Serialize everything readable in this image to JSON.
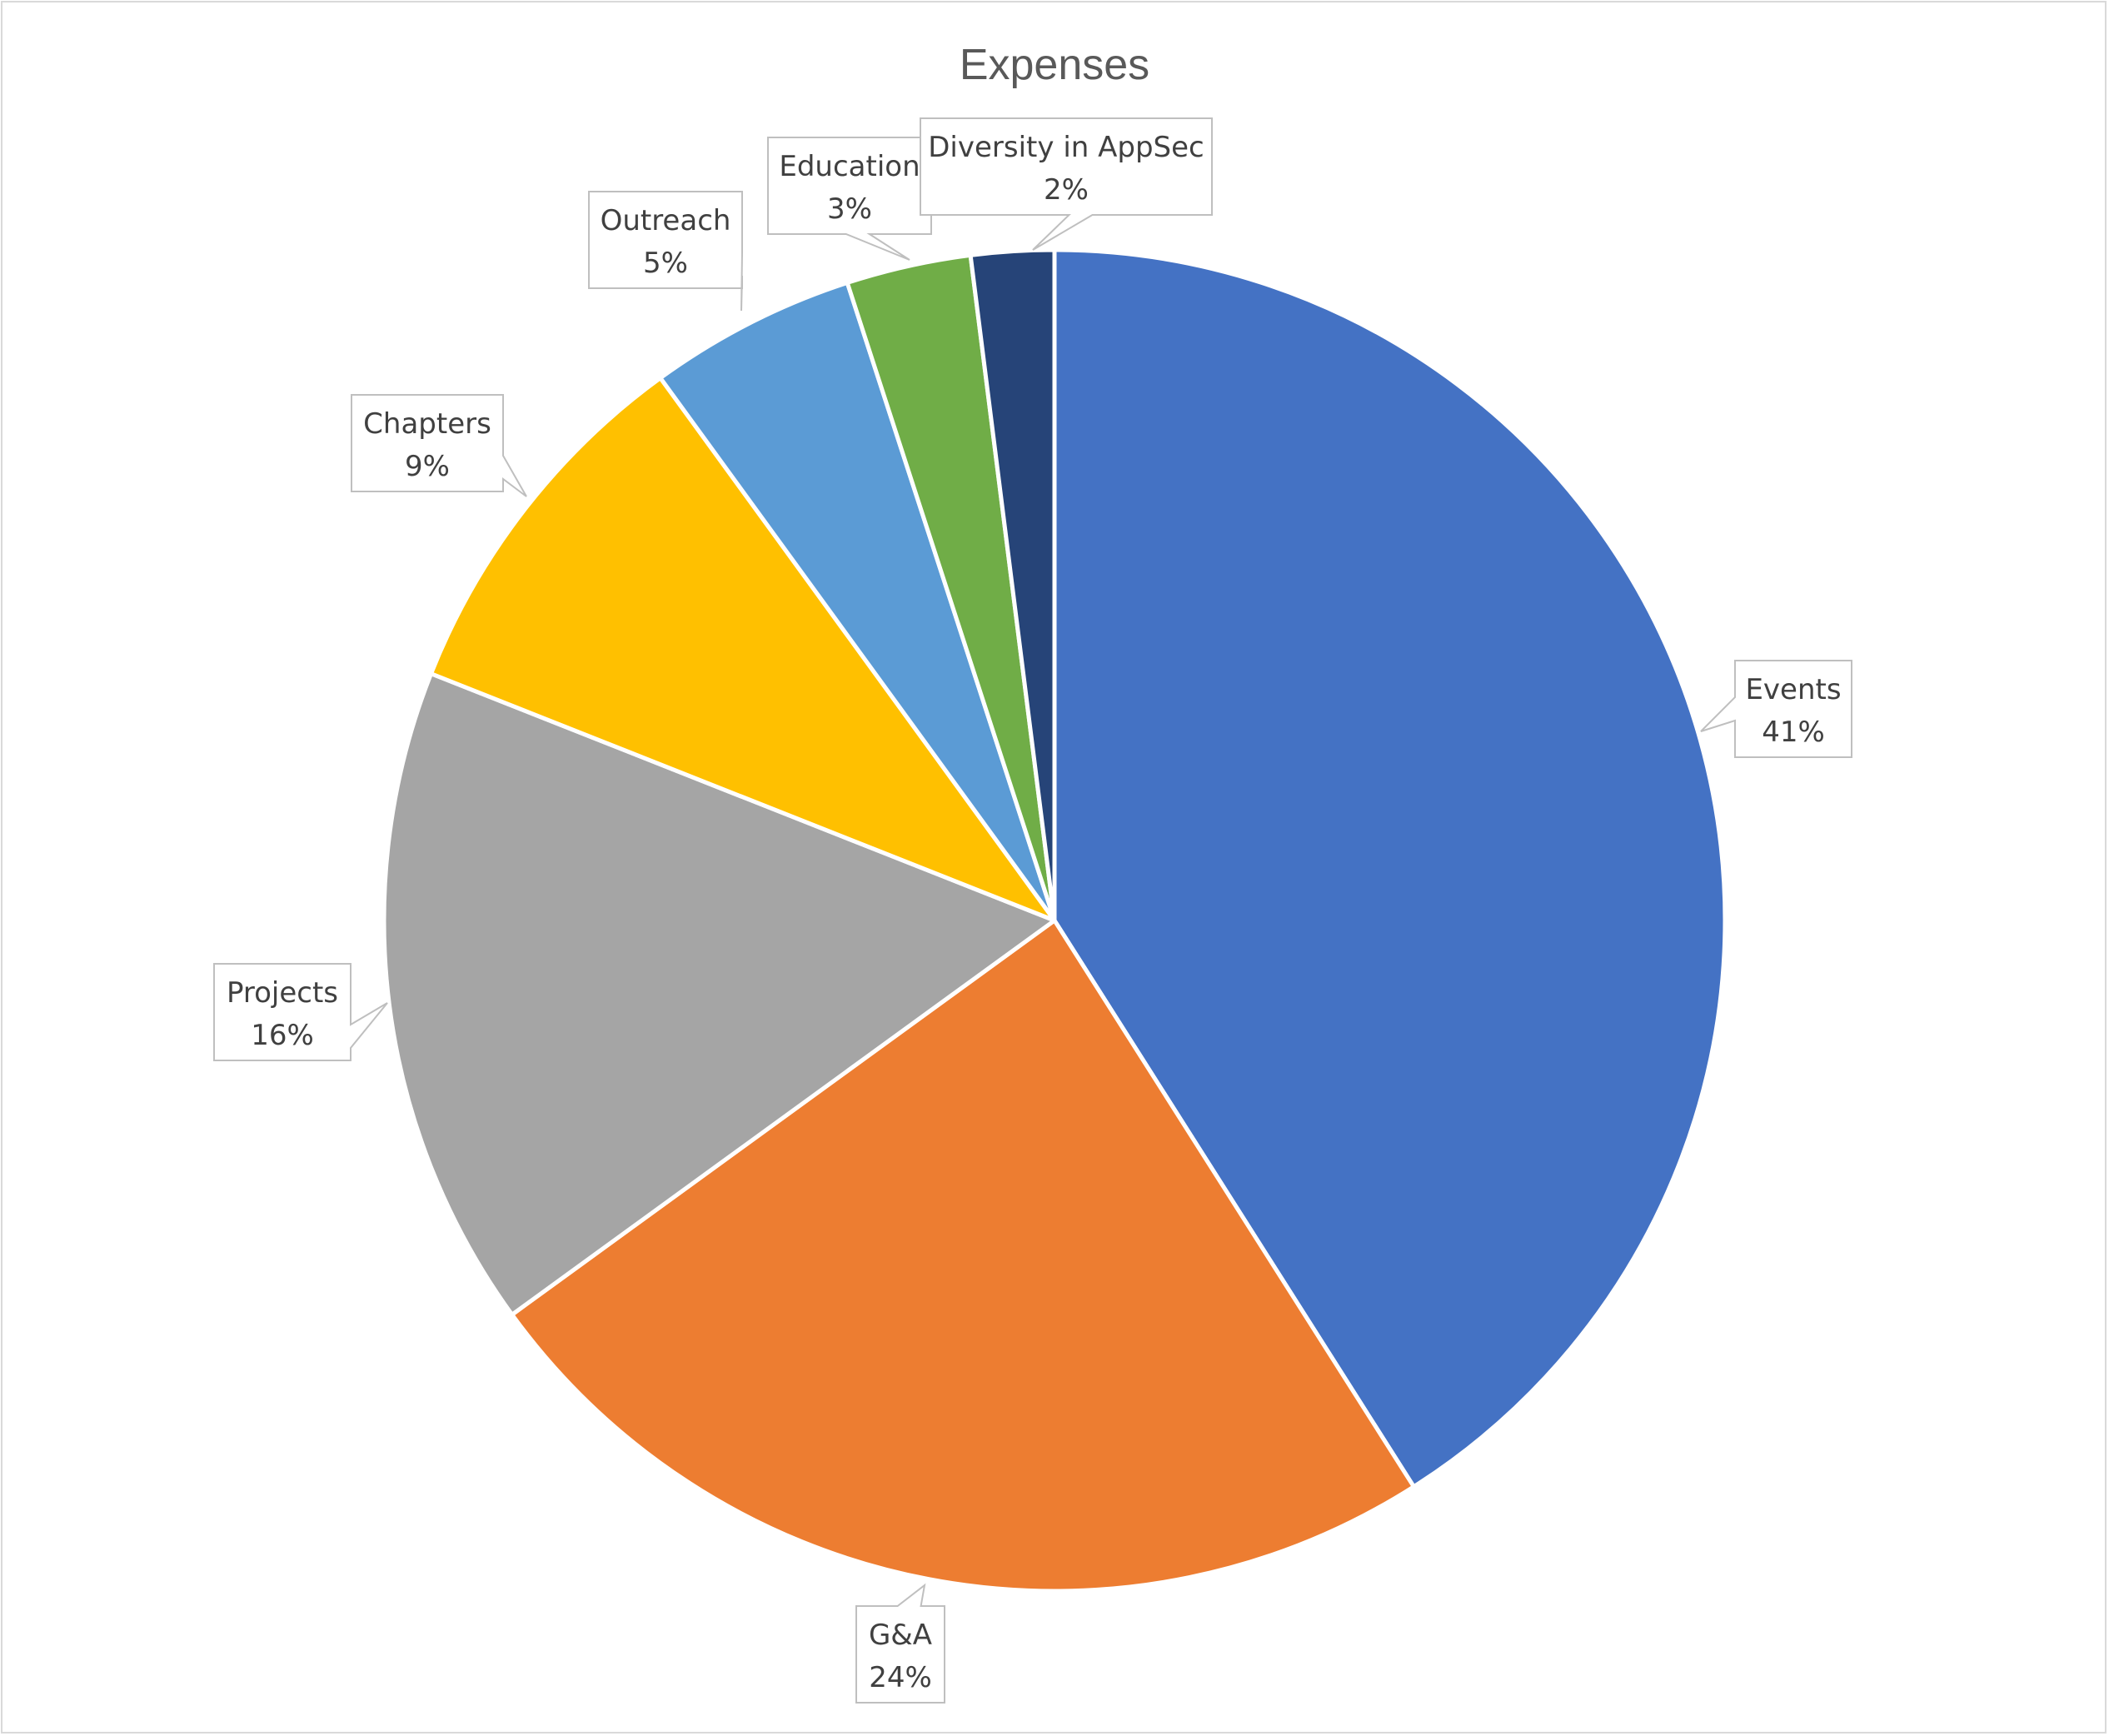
{
  "chart_data": {
    "type": "pie",
    "title": "Expenses",
    "start_angle_deg": 0,
    "direction": "clockwise",
    "slices": [
      {
        "label": "Events",
        "value": 41,
        "value_label": "41%",
        "color": "#4472C4"
      },
      {
        "label": "G&A",
        "value": 24,
        "value_label": "24%",
        "color": "#ED7D31"
      },
      {
        "label": "Projects",
        "value": 16,
        "value_label": "16%",
        "color": "#A5A5A5"
      },
      {
        "label": "Chapters",
        "value": 9,
        "value_label": "9%",
        "color": "#FFC000"
      },
      {
        "label": "Outreach",
        "value": 5,
        "value_label": "5%",
        "color": "#5B9BD5"
      },
      {
        "label": "Education",
        "value": 3,
        "value_label": "3%",
        "color": "#70AD47"
      },
      {
        "label": "Diversity in AppSec",
        "value": 2,
        "value_label": "2%",
        "color": "#264478"
      }
    ],
    "legend": "none",
    "data_labels": "callouts"
  }
}
